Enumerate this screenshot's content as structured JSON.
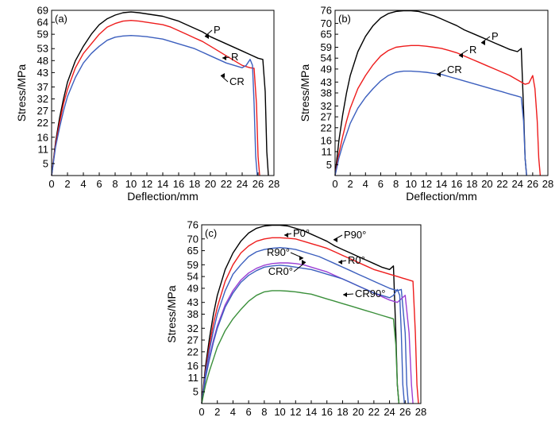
{
  "figure": {
    "ylabel": "Stress/MPa",
    "xlabel": "Deflection/mm"
  },
  "colors": {
    "black": "#000000",
    "red": "#ee1c1c",
    "blue": "#3c5fbe",
    "purple": "#9b3fd4",
    "green": "#3a8f3a",
    "axis": "#000000"
  },
  "chart_data": [
    {
      "type": "line",
      "panel_label": "(a)",
      "xlabel": "Deflection/mm",
      "ylabel": "Stress/MPa",
      "xlim": [
        0,
        28
      ],
      "ylim": [
        0,
        69
      ],
      "xticks": [
        0,
        2,
        4,
        6,
        8,
        10,
        12,
        14,
        16,
        18,
        20,
        22,
        24,
        26,
        28
      ],
      "xtick_labels": [
        "0",
        "2",
        "4",
        "6",
        "8",
        "10",
        "12",
        "14",
        "16",
        "18",
        "20",
        "22",
        "24",
        "26",
        "28"
      ],
      "yticks": [
        5,
        11,
        16,
        22,
        27,
        32,
        37,
        43,
        48,
        53,
        59,
        64,
        69
      ],
      "ytick_labels": [
        "5",
        "11",
        "16",
        "22",
        "27",
        "32",
        "37",
        "43",
        "48",
        "53",
        "59",
        "64",
        "69"
      ],
      "series": [
        {
          "name": "P",
          "color": "black",
          "x": [
            0,
            0.5,
            1,
            1.5,
            2,
            3,
            4,
            5,
            6,
            7,
            8,
            9,
            10,
            11,
            12,
            13,
            14,
            15,
            16,
            17,
            18,
            19,
            20,
            21,
            22,
            23,
            24,
            25,
            26,
            26.6,
            26.9,
            27.1,
            27.3
          ],
          "y": [
            0,
            14,
            24,
            32,
            39,
            48,
            54,
            59,
            63,
            65.5,
            67,
            68,
            68.3,
            68,
            67.5,
            67,
            66.5,
            65.5,
            64.5,
            63,
            61.5,
            60,
            58,
            56.5,
            55,
            53.5,
            52,
            50.5,
            49,
            48.5,
            35,
            10,
            0
          ]
        },
        {
          "name": "R",
          "color": "red",
          "x": [
            0,
            0.5,
            1,
            1.5,
            2,
            3,
            4,
            5,
            6,
            7,
            8,
            9,
            10,
            11,
            12,
            13,
            14,
            15,
            16,
            17,
            18,
            19,
            20,
            21,
            22,
            23,
            24,
            25,
            25.5,
            25.8,
            26,
            26.2
          ],
          "y": [
            0,
            13,
            22,
            30,
            36,
            45,
            51,
            55,
            59,
            62,
            63.5,
            64.5,
            64.8,
            64.5,
            64,
            63.5,
            63,
            62,
            60.5,
            59,
            57.5,
            56,
            54,
            52,
            50,
            48,
            46,
            45,
            44.8,
            30,
            8,
            0
          ]
        },
        {
          "name": "CR",
          "color": "blue",
          "x": [
            0,
            0.5,
            1,
            1.5,
            2,
            3,
            4,
            5,
            6,
            7,
            8,
            9,
            10,
            11,
            12,
            13,
            14,
            15,
            16,
            17,
            18,
            19,
            20,
            21,
            22,
            23,
            24,
            24.5,
            25,
            25.3,
            25.5,
            25.7,
            25.9
          ],
          "y": [
            0,
            12,
            20,
            27,
            33,
            41,
            47,
            51,
            54,
            56.5,
            57.8,
            58.3,
            58.5,
            58.3,
            58,
            57.5,
            57,
            56,
            55,
            54,
            53,
            51.5,
            50,
            48.5,
            47,
            46,
            45,
            46,
            48.5,
            46,
            30,
            8,
            0
          ]
        }
      ],
      "annotations": [
        {
          "text": "P",
          "series": "P"
        },
        {
          "text": "R",
          "series": "R"
        },
        {
          "text": "CR",
          "series": "CR"
        }
      ]
    },
    {
      "type": "line",
      "panel_label": "(b)",
      "xlabel": "Deflection/mm",
      "ylabel": "Stress/MPa",
      "xlim": [
        0,
        28
      ],
      "ylim": [
        0,
        76
      ],
      "xticks": [
        0,
        2,
        4,
        6,
        8,
        10,
        12,
        14,
        16,
        18,
        20,
        22,
        24,
        26,
        28
      ],
      "xtick_labels": [
        "0",
        "2",
        "4",
        "6",
        "8",
        "10",
        "12",
        "14",
        "16",
        "18",
        "20",
        "22",
        "24",
        "26",
        "28"
      ],
      "yticks": [
        5,
        11,
        16,
        22,
        27,
        32,
        38,
        43,
        49,
        54,
        59,
        65,
        70,
        76
      ],
      "ytick_labels": [
        "5",
        "11",
        "16",
        "22",
        "27",
        "32",
        "38",
        "43",
        "49",
        "54",
        "59",
        "65",
        "70",
        "76"
      ],
      "series": [
        {
          "name": "P",
          "color": "black",
          "x": [
            0,
            0.5,
            1,
            1.5,
            2,
            3,
            4,
            5,
            6,
            7,
            8,
            9,
            10,
            11,
            12,
            13,
            14,
            15,
            16,
            17,
            18,
            19,
            20,
            21,
            22,
            23,
            24,
            24.5,
            24.8,
            25,
            25.2
          ],
          "y": [
            0,
            16,
            28,
            38,
            46,
            57,
            64,
            69,
            72.5,
            74.5,
            75.5,
            75.8,
            75.8,
            75.5,
            74.5,
            73.5,
            72,
            70.5,
            69,
            67,
            65.5,
            64,
            62.5,
            61,
            59.5,
            58,
            57,
            58.5,
            30,
            8,
            0
          ]
        },
        {
          "name": "R",
          "color": "red",
          "x": [
            0,
            0.5,
            1,
            1.5,
            2,
            3,
            4,
            5,
            6,
            7,
            8,
            9,
            10,
            11,
            12,
            13,
            14,
            15,
            16,
            17,
            18,
            19,
            20,
            21,
            22,
            23,
            24,
            25,
            25.5,
            26,
            26.3,
            26.6,
            26.8,
            27
          ],
          "y": [
            0,
            10,
            18,
            25,
            31,
            40,
            46,
            51,
            55,
            57.5,
            59,
            59.5,
            59.8,
            59.8,
            59.5,
            59,
            58.5,
            57.5,
            56.5,
            55,
            53.5,
            52,
            50.5,
            49,
            47.5,
            46,
            44,
            42,
            42.5,
            46,
            40,
            25,
            8,
            0
          ]
        },
        {
          "name": "CR",
          "color": "blue",
          "x": [
            0,
            0.5,
            1,
            1.5,
            2,
            3,
            4,
            5,
            6,
            7,
            8,
            9,
            10,
            11,
            12,
            13,
            14,
            15,
            16,
            17,
            18,
            19,
            20,
            21,
            22,
            23,
            24,
            24.5,
            24.8,
            25,
            25.2
          ],
          "y": [
            0,
            8,
            14,
            19,
            24,
            31,
            36,
            40,
            43.5,
            46,
            47.5,
            48,
            48,
            47.8,
            47.5,
            47,
            46.5,
            45.5,
            44.5,
            43.5,
            42.5,
            41.5,
            40.5,
            39.5,
            38.5,
            37.5,
            36.5,
            36,
            25,
            8,
            0
          ]
        }
      ],
      "annotations": [
        {
          "text": "P",
          "series": "P"
        },
        {
          "text": "R",
          "series": "R"
        },
        {
          "text": "CR",
          "series": "CR"
        }
      ]
    },
    {
      "type": "line",
      "panel_label": "(c)",
      "xlabel": "Deflection/mm",
      "ylabel": "Stress/MPa",
      "xlim": [
        0,
        28
      ],
      "ylim": [
        0,
        76
      ],
      "xticks": [
        0,
        2,
        4,
        6,
        8,
        10,
        12,
        14,
        16,
        18,
        20,
        22,
        24,
        26,
        28
      ],
      "xtick_labels": [
        "0",
        "2",
        "4",
        "6",
        "8",
        "10",
        "12",
        "14",
        "16",
        "18",
        "20",
        "22",
        "24",
        "26",
        "28"
      ],
      "yticks": [
        5,
        11,
        16,
        22,
        27,
        32,
        38,
        43,
        49,
        54,
        59,
        65,
        70,
        76
      ],
      "ytick_labels": [
        "5",
        "11",
        "16",
        "22",
        "27",
        "32",
        "38",
        "43",
        "49",
        "54",
        "59",
        "65",
        "70",
        "76"
      ],
      "series": [
        {
          "name": "P0°",
          "color": "black",
          "x": [
            0,
            0.5,
            1,
            1.5,
            2,
            3,
            4,
            5,
            6,
            7,
            8,
            9,
            10,
            11,
            12,
            13,
            14,
            15,
            16,
            17,
            18,
            19,
            20,
            21,
            22,
            23,
            24,
            24.5,
            24.8,
            25,
            25.2
          ],
          "y": [
            0,
            16,
            28,
            38,
            46,
            57,
            64,
            69,
            72.5,
            74.5,
            75.5,
            75.8,
            75.8,
            75.5,
            74.5,
            73.5,
            72,
            70.5,
            69,
            67,
            65.5,
            64,
            62.5,
            61,
            59.5,
            58,
            57,
            58.5,
            30,
            8,
            0
          ]
        },
        {
          "name": "P90°",
          "color": "red",
          "x": [
            0,
            0.5,
            1,
            1.5,
            2,
            3,
            4,
            5,
            6,
            7,
            8,
            9,
            10,
            11,
            12,
            13,
            14,
            15,
            16,
            17,
            18,
            19,
            20,
            21,
            22,
            23,
            24,
            25,
            26,
            27,
            27.3,
            27.5,
            27.7
          ],
          "y": [
            0,
            14,
            25,
            34,
            41,
            52,
            59,
            64,
            67,
            69,
            70,
            70.5,
            70.5,
            70.3,
            70,
            69,
            68,
            67,
            66,
            64.5,
            63,
            61.5,
            60,
            58.5,
            57,
            56,
            55,
            54,
            53,
            52,
            30,
            8,
            0
          ]
        },
        {
          "name": "R0°",
          "color": "blue",
          "x": [
            0,
            0.5,
            1,
            1.5,
            2,
            3,
            4,
            5,
            6,
            7,
            8,
            9,
            10,
            11,
            12,
            13,
            14,
            15,
            16,
            17,
            18,
            19,
            20,
            21,
            22,
            23,
            24,
            25,
            25.5,
            26,
            26.2,
            26.4
          ],
          "y": [
            0,
            13,
            23,
            31,
            38,
            48,
            55,
            59,
            62.5,
            64.5,
            65.5,
            66,
            66.3,
            66,
            65.5,
            64.5,
            63.5,
            62.5,
            61,
            59.5,
            58,
            56.5,
            55,
            53.5,
            52,
            50.5,
            49,
            48,
            48.5,
            30,
            8,
            0
          ]
        },
        {
          "name": "R90°",
          "color": "purple",
          "x": [
            0,
            0.5,
            1,
            1.5,
            2,
            3,
            4,
            5,
            6,
            7,
            8,
            9,
            10,
            11,
            12,
            13,
            14,
            15,
            16,
            17,
            18,
            19,
            20,
            21,
            22,
            23,
            24,
            25,
            26,
            26.5,
            26.8,
            27
          ],
          "y": [
            0,
            11,
            20,
            27,
            33,
            42,
            48,
            52.5,
            55.5,
            57.5,
            58.8,
            59.5,
            59.8,
            59.8,
            59.5,
            59,
            58,
            57,
            56,
            54.5,
            53,
            51.5,
            50,
            48.5,
            47,
            45.5,
            44,
            43,
            46,
            30,
            8,
            0
          ]
        },
        {
          "name": "CR0°",
          "color": "blue",
          "x": [
            0,
            0.5,
            1,
            1.5,
            2,
            3,
            4,
            5,
            6,
            7,
            8,
            9,
            10,
            11,
            12,
            13,
            14,
            15,
            16,
            17,
            18,
            19,
            20,
            21,
            22,
            23,
            24,
            24.5,
            25,
            25.3,
            25.5,
            25.7,
            25.9
          ],
          "y": [
            0,
            11,
            19,
            26,
            32,
            41,
            47,
            51.5,
            54.5,
            56.5,
            58,
            58.5,
            58.8,
            58.5,
            58,
            57.5,
            57,
            56,
            55,
            54,
            53,
            51.5,
            50,
            48.5,
            47,
            46,
            45,
            46,
            48.5,
            46,
            30,
            8,
            0
          ]
        },
        {
          "name": "CR90°",
          "color": "green",
          "x": [
            0,
            0.5,
            1,
            1.5,
            2,
            3,
            4,
            5,
            6,
            7,
            8,
            9,
            10,
            11,
            12,
            13,
            14,
            15,
            16,
            17,
            18,
            19,
            20,
            21,
            22,
            23,
            24,
            24.5,
            24.8,
            25,
            25.2
          ],
          "y": [
            0,
            8,
            14,
            19,
            24,
            31,
            36,
            40,
            43.5,
            46,
            47.5,
            48,
            48,
            47.8,
            47.5,
            47,
            46.5,
            45.5,
            44.5,
            43.5,
            42.5,
            41.5,
            40.5,
            39.5,
            38.5,
            37.5,
            36.5,
            36,
            25,
            8,
            0
          ]
        }
      ],
      "annotations": [
        {
          "text": "P0°",
          "series": "P0°"
        },
        {
          "text": "P90°",
          "series": "P90°"
        },
        {
          "text": "R90°",
          "series": "R90°"
        },
        {
          "text": "R0°",
          "series": "R0°"
        },
        {
          "text": "CR0°",
          "series": "CR0°"
        },
        {
          "text": "CR90°",
          "series": "CR90°"
        }
      ]
    }
  ]
}
